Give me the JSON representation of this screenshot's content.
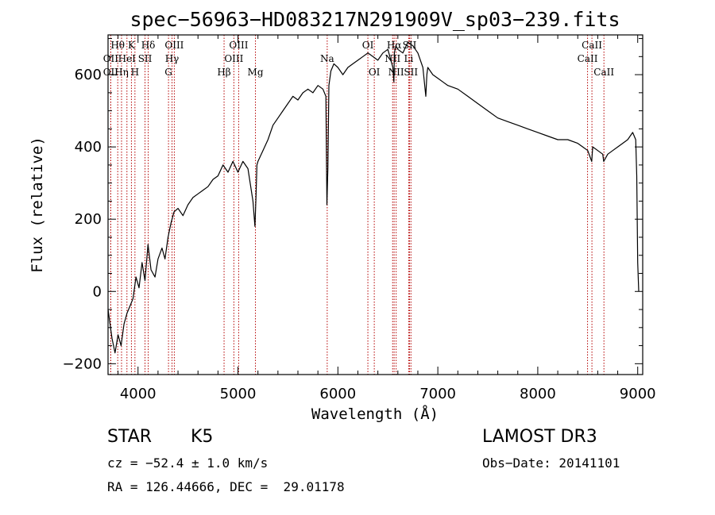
{
  "chart_data": {
    "type": "line",
    "title": "spec−56963−HD083217N291909V_sp03−239.fits",
    "xlabel": "Wavelength (Å)",
    "ylabel": "Flux (relative)",
    "xlim": [
      3700,
      9050
    ],
    "ylim": [
      -230,
      710
    ],
    "xticks": [
      4000,
      5000,
      6000,
      7000,
      8000,
      9000
    ],
    "yticks": [
      -200,
      0,
      200,
      400,
      600
    ],
    "xtick_labels": [
      "4000",
      "5000",
      "6000",
      "7000",
      "8000",
      "9000"
    ],
    "ytick_labels": [
      "−200",
      "0",
      "200",
      "400",
      "600"
    ],
    "series": [
      {
        "name": "flux",
        "x": [
          3700,
          3740,
          3770,
          3800,
          3830,
          3860,
          3890,
          3920,
          3950,
          3980,
          4010,
          4040,
          4070,
          4100,
          4130,
          4170,
          4200,
          4240,
          4270,
          4300,
          4330,
          4360,
          4400,
          4450,
          4500,
          4550,
          4600,
          4650,
          4700,
          4750,
          4800,
          4850,
          4900,
          4950,
          5000,
          5050,
          5100,
          5150,
          5170,
          5180,
          5190,
          5200,
          5250,
          5300,
          5350,
          5400,
          5450,
          5500,
          5550,
          5600,
          5650,
          5700,
          5750,
          5800,
          5850,
          5880,
          5890,
          5900,
          5910,
          5930,
          5960,
          6000,
          6050,
          6100,
          6150,
          6200,
          6250,
          6300,
          6350,
          6400,
          6450,
          6500,
          6550,
          6560,
          6565,
          6580,
          6600,
          6650,
          6700,
          6750,
          6800,
          6850,
          6880,
          6890,
          6900,
          6950,
          7000,
          7050,
          7100,
          7200,
          7300,
          7400,
          7500,
          7600,
          7700,
          7800,
          7900,
          8000,
          8100,
          8200,
          8300,
          8400,
          8450,
          8500,
          8540,
          8550,
          8600,
          8650,
          8660,
          8700,
          8750,
          8800,
          8850,
          8900,
          8950,
          8980,
          8990,
          9000,
          9010
        ],
        "y": [
          -50,
          -130,
          -170,
          -120,
          -150,
          -90,
          -60,
          -40,
          -20,
          40,
          10,
          80,
          30,
          130,
          60,
          40,
          90,
          120,
          90,
          150,
          190,
          220,
          230,
          210,
          240,
          260,
          270,
          280,
          290,
          310,
          320,
          350,
          330,
          360,
          330,
          360,
          340,
          250,
          180,
          260,
          350,
          360,
          390,
          420,
          460,
          480,
          500,
          520,
          540,
          530,
          550,
          560,
          550,
          570,
          560,
          540,
          240,
          340,
          570,
          610,
          630,
          620,
          600,
          620,
          630,
          640,
          650,
          660,
          650,
          640,
          660,
          670,
          620,
          580,
          660,
          680,
          670,
          660,
          690,
          680,
          660,
          620,
          540,
          600,
          620,
          600,
          590,
          580,
          570,
          560,
          540,
          520,
          500,
          480,
          470,
          460,
          450,
          440,
          430,
          420,
          420,
          410,
          400,
          390,
          360,
          400,
          390,
          380,
          360,
          380,
          390,
          400,
          410,
          420,
          440,
          420,
          320,
          80,
          0
        ]
      }
    ],
    "line_markers": [
      {
        "label": "Hθ",
        "x": 3797,
        "row": 1
      },
      {
        "label": "OII",
        "x": 3727,
        "row": 2
      },
      {
        "label": "OII",
        "x": 3727,
        "row": 3
      },
      {
        "label": "K",
        "x": 3934,
        "row": 1
      },
      {
        "label": "HeI",
        "x": 3889,
        "row": 2
      },
      {
        "label": "Hη",
        "x": 3835,
        "row": 3
      },
      {
        "label": "SII",
        "x": 4070,
        "row": 2
      },
      {
        "label": "H",
        "x": 3969,
        "row": 3
      },
      {
        "label": "Hδ",
        "x": 4102,
        "row": 1
      },
      {
        "label": "OIII",
        "x": 4363,
        "row": 1
      },
      {
        "label": "Hγ",
        "x": 4340,
        "row": 2
      },
      {
        "label": "G",
        "x": 4305,
        "row": 3
      },
      {
        "label": "OIII",
        "x": 5007,
        "row": 1
      },
      {
        "label": "OIII",
        "x": 4959,
        "row": 2
      },
      {
        "label": "Hβ",
        "x": 4861,
        "row": 3
      },
      {
        "label": "Mg",
        "x": 5175,
        "row": 3
      },
      {
        "label": "Na",
        "x": 5893,
        "row": 2
      },
      {
        "label": "OI",
        "x": 6300,
        "row": 1
      },
      {
        "label": "OI",
        "x": 6364,
        "row": 3
      },
      {
        "label": "Hα",
        "x": 6563,
        "row": 1
      },
      {
        "label": "NII",
        "x": 6548,
        "row": 2
      },
      {
        "label": "NII",
        "x": 6583,
        "row": 3
      },
      {
        "label": "SII",
        "x": 6717,
        "row": 1
      },
      {
        "label": "Li",
        "x": 6708,
        "row": 2
      },
      {
        "label": "SII",
        "x": 6731,
        "row": 3
      },
      {
        "label": "CaII",
        "x": 8542,
        "row": 1
      },
      {
        "label": "CaII",
        "x": 8498,
        "row": 2
      },
      {
        "label": "CaII",
        "x": 8662,
        "row": 3
      }
    ],
    "line_color": "#000000",
    "marker_color": "#b40000"
  },
  "info": {
    "object_type": "STAR",
    "subclass": "K5",
    "survey": "LAMOST DR3",
    "redshift": "cz = −52.4 ± 1.0 km/s",
    "obs_date": "Obs−Date: 20141101",
    "coords": "RA = 126.44666, DEC =  29.01178"
  }
}
